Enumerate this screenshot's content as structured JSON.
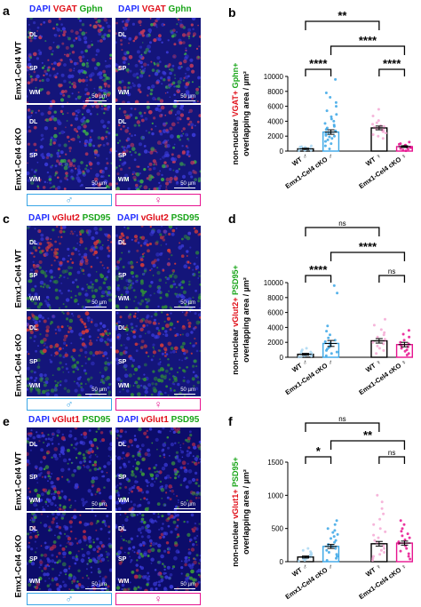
{
  "letters": {
    "a": "a",
    "b": "b",
    "c": "c",
    "d": "d",
    "e": "e",
    "f": "f"
  },
  "row_labels": {
    "wt": "Emx1-Cel4 WT",
    "cko": "Emx1-Cel4 cKO"
  },
  "micro_labels": {
    "dl": "DL",
    "sp": "SP",
    "wm": "WM",
    "scale": "50 µm"
  },
  "sex": {
    "male": "♂",
    "female": "♀"
  },
  "headers": {
    "a": {
      "dapi": "DAPI",
      "m1": "VGAT",
      "m2": "Gphn"
    },
    "c": {
      "dapi": "DAPI",
      "m1": "vGlut2",
      "m2": "PSD95"
    },
    "e": {
      "dapi": "DAPI",
      "m1": "vGlut1",
      "m2": "PSD95"
    }
  },
  "colors": {
    "dapi": "#1f2cff",
    "red": "#e0101a",
    "green": "#19a519",
    "male": "#3aa6e6",
    "female": "#e7128f",
    "male_light": "#a9d7f2",
    "female_light": "#f4a8d4"
  },
  "chart_data": [
    {
      "type": "bar",
      "panel": "b",
      "ylabel_parts": [
        "non-nuclear ",
        "VGAT+",
        " ",
        "Gphn+"
      ],
      "ylabel_line2": "overlapping area / µm²",
      "categories": [
        "WT ♂",
        "Emx1-Cel4 cKO ♂",
        "WT ♀",
        "Emx1-Cel4 cKO ♀"
      ],
      "values": [
        300,
        2550,
        3100,
        600
      ],
      "errors": [
        80,
        300,
        250,
        120
      ],
      "ylim": [
        0,
        10000
      ],
      "yticks": [
        0,
        2000,
        4000,
        6000,
        8000,
        10000
      ],
      "ticklabels": [
        "0",
        "2000",
        "4000",
        "6000",
        "8000",
        "10000"
      ],
      "points": [
        [
          50,
          80,
          120,
          150,
          180,
          220,
          250,
          280,
          300,
          320,
          350,
          380,
          400,
          450,
          500,
          550,
          600,
          700
        ],
        [
          300,
          700,
          1000,
          1300,
          1500,
          1700,
          1900,
          2000,
          2100,
          2300,
          2500,
          2700,
          2900,
          3100,
          3300,
          3500,
          3700,
          4000,
          4300,
          4600,
          4900,
          5400,
          6000,
          6500,
          7200,
          7800,
          9600
        ],
        [
          1700,
          2000,
          2200,
          2400,
          2600,
          2700,
          2800,
          2900,
          3000,
          3100,
          3200,
          3300,
          3400,
          3600,
          3800,
          4100,
          4700,
          5600
        ],
        [
          50,
          150,
          250,
          350,
          450,
          500,
          550,
          600,
          650,
          700,
          800,
          900,
          1000,
          1200
        ]
      ],
      "comparisons": [
        {
          "from": 0,
          "to": 1,
          "label": "****",
          "level": 0
        },
        {
          "from": 2,
          "to": 3,
          "label": "****",
          "level": 0
        },
        {
          "from": 1,
          "to": 3,
          "label": "****",
          "level": 1
        },
        {
          "from": 0,
          "to": 2,
          "label": "**",
          "level": 2
        }
      ]
    },
    {
      "type": "bar",
      "panel": "d",
      "ylabel_parts": [
        "non-nuclear ",
        "vGlut2+",
        " ",
        "PSD95+"
      ],
      "ylabel_line2": "overlapping area / µm²",
      "categories": [
        "WT ♂",
        "Emx1-Cel4 cKO ♂",
        "WT ♀",
        "Emx1-Cel4 cKO ♀"
      ],
      "values": [
        400,
        1850,
        2200,
        1700
      ],
      "errors": [
        120,
        400,
        300,
        300
      ],
      "ylim": [
        0,
        10000
      ],
      "yticks": [
        0,
        2000,
        4000,
        6000,
        8000,
        10000
      ],
      "ticklabels": [
        "0",
        "2000",
        "4000",
        "6000",
        "8000",
        "10000"
      ],
      "points": [
        [
          50,
          100,
          150,
          200,
          250,
          300,
          350,
          400,
          450,
          500,
          600,
          700,
          800,
          1000,
          1200
        ],
        [
          200,
          500,
          700,
          900,
          1100,
          1300,
          1500,
          1700,
          1900,
          2100,
          2300,
          2600,
          3000,
          3500,
          4200,
          8600,
          9600
        ],
        [
          500,
          900,
          1200,
          1500,
          1800,
          2000,
          2200,
          2400,
          2700,
          3000,
          3300,
          3700,
          4300,
          5100
        ],
        [
          300,
          500,
          800,
          1000,
          1200,
          1400,
          1600,
          1800,
          2000,
          2300,
          2700,
          3100,
          3600
        ]
      ],
      "comparisons": [
        {
          "from": 0,
          "to": 1,
          "label": "****",
          "level": 0
        },
        {
          "from": 2,
          "to": 3,
          "label": "ns",
          "level": 0
        },
        {
          "from": 1,
          "to": 3,
          "label": "****",
          "level": 1
        },
        {
          "from": 0,
          "to": 2,
          "label": "ns",
          "level": 2
        }
      ]
    },
    {
      "type": "bar",
      "panel": "f",
      "ylabel_parts": [
        "non-nuclear ",
        "vGlut1+",
        " ",
        "PSD95+"
      ],
      "ylabel_line2": "overlapping area / µm²",
      "categories": [
        "WT ♂",
        "Emx1-Cel4 cKO ♂",
        "WT ♀",
        "Emx1-Cel4 cKO ♀"
      ],
      "values": [
        70,
        230,
        270,
        280
      ],
      "errors": [
        15,
        30,
        35,
        30
      ],
      "ylim": [
        0,
        1500
      ],
      "yticks": [
        0,
        500,
        1000,
        1500
      ],
      "ticklabels": [
        "0",
        "500",
        "1000",
        "1500"
      ],
      "points": [
        [
          10,
          20,
          30,
          40,
          50,
          60,
          70,
          80,
          90,
          100,
          110,
          130,
          150,
          170,
          200
        ],
        [
          20,
          50,
          80,
          110,
          140,
          170,
          200,
          230,
          260,
          290,
          320,
          350,
          380,
          410,
          440,
          470,
          500,
          560,
          620
        ],
        [
          20,
          50,
          80,
          110,
          140,
          170,
          200,
          240,
          280,
          320,
          360,
          400,
          450,
          500,
          560,
          640,
          720,
          800,
          900,
          1000
        ],
        [
          40,
          80,
          120,
          160,
          200,
          240,
          270,
          300,
          330,
          360,
          390,
          420,
          460,
          500,
          560,
          620
        ]
      ],
      "comparisons": [
        {
          "from": 0,
          "to": 1,
          "label": "*",
          "level": 0
        },
        {
          "from": 2,
          "to": 3,
          "label": "ns",
          "level": 0
        },
        {
          "from": 1,
          "to": 3,
          "label": "**",
          "level": 1
        },
        {
          "from": 0,
          "to": 2,
          "label": "ns",
          "level": 2
        }
      ]
    }
  ]
}
